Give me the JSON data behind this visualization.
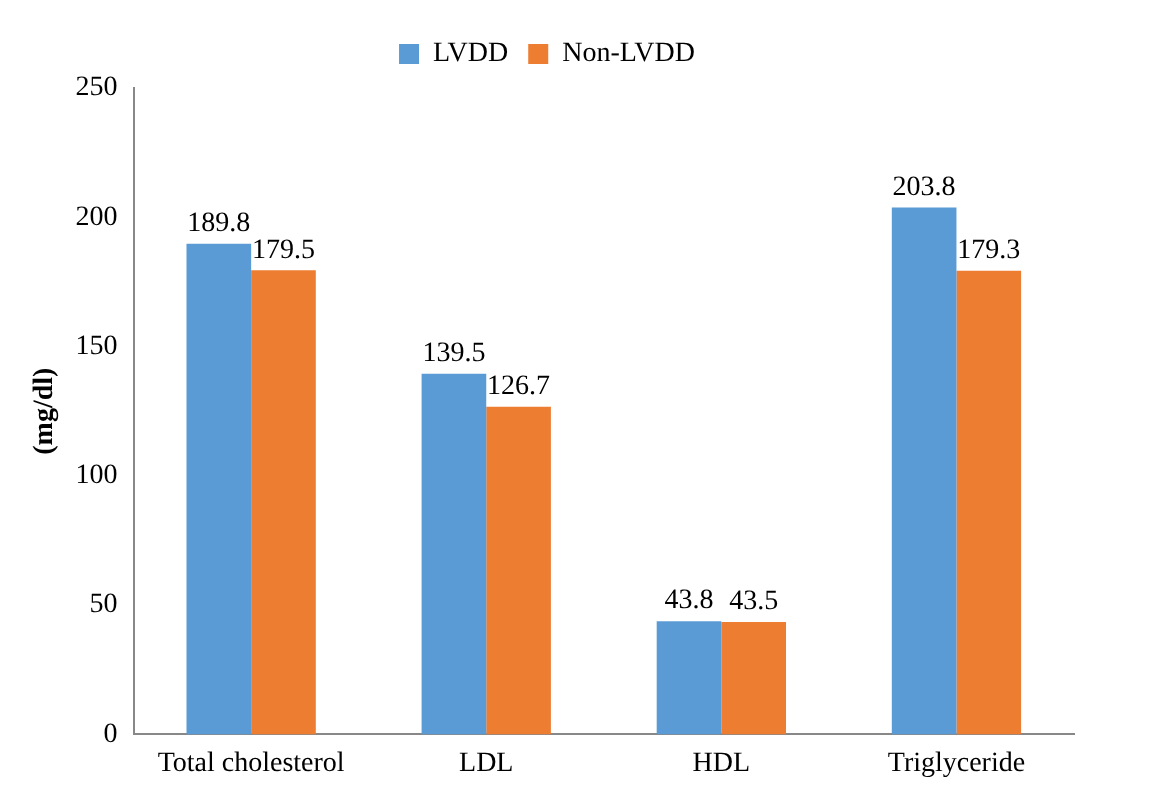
{
  "chart_data": {
    "type": "bar",
    "ylabel": "(mg/dl)",
    "categories": [
      "Total cholesterol",
      "LDL",
      "HDL",
      "Triglyceride"
    ],
    "series": [
      {
        "name": "LVDD",
        "color": "#5b9bd5",
        "values": [
          189.8,
          139.5,
          43.8,
          203.8
        ]
      },
      {
        "name": "Non-LVDD",
        "color": "#ed7d31",
        "values": [
          179.5,
          126.7,
          43.5,
          179.3
        ]
      }
    ],
    "ylim": [
      0,
      250
    ],
    "yticks": [
      0,
      50,
      100,
      150,
      200,
      250
    ],
    "grid": false,
    "legend": "top",
    "data_labels": true
  }
}
